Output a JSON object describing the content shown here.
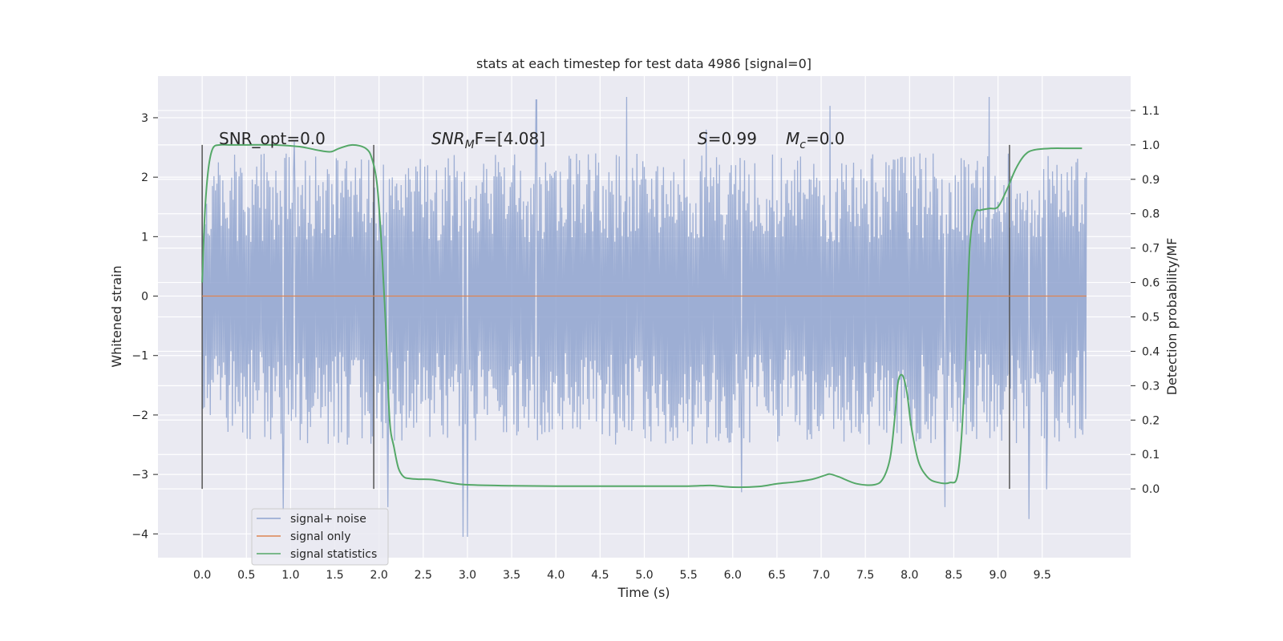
{
  "chart_data": {
    "type": "line",
    "title": "stats at each timestep for test data 4986 [signal=0]",
    "xlabel": "Time (s)",
    "ylabel": "Whitened strain",
    "ylabel_right": "Detection probability/MF",
    "xlim": [
      -0.5,
      10.5
    ],
    "ylim": [
      -4.4,
      3.7
    ],
    "ylim_right": [
      -0.2,
      1.2
    ],
    "xticks": [
      "0.0",
      "0.5",
      "1.0",
      "1.5",
      "2.0",
      "2.5",
      "3.0",
      "3.5",
      "4.0",
      "4.5",
      "5.0",
      "5.5",
      "6.0",
      "6.5",
      "7.0",
      "7.5",
      "8.0",
      "8.5",
      "9.0",
      "9.5"
    ],
    "yticks": [
      "3",
      "2",
      "1",
      "0",
      "−1",
      "−2",
      "−3",
      "−4"
    ],
    "yticks_right": [
      "1.1",
      "1.0",
      "0.9",
      "0.8",
      "0.7",
      "0.6",
      "0.5",
      "0.4",
      "0.3",
      "0.2",
      "0.1",
      "0.0"
    ],
    "grid": true,
    "legend_position": "lower-left",
    "annotations": {
      "snr_opt": "SNR_opt=0.0",
      "snr_mf_main": "SNR",
      "snr_mf_sub": "M",
      "snr_mf_rest": "F=[4.08]",
      "s_main": "S",
      "s_rest": "=0.99",
      "mc_main": "M",
      "mc_sub": "c",
      "mc_rest": "=0.0"
    },
    "vertical_markers_x": [
      0.0,
      1.94,
      9.13
    ],
    "series": [
      {
        "name": "signal+ noise",
        "axis": "left",
        "color": "#8fa3cf",
        "x_range": [
          0.0,
          10.0
        ],
        "envelope_high": 2.4,
        "envelope_low": -2.5,
        "peaks_high": [
          [
            1.04,
            2.6
          ],
          [
            2.1,
            3.25
          ],
          [
            3.78,
            3.3
          ],
          [
            4.8,
            3.35
          ],
          [
            7.1,
            3.2
          ],
          [
            8.9,
            3.35
          ],
          [
            5.7,
            2.8
          ]
        ],
        "peaks_low": [
          [
            0.92,
            -3.6
          ],
          [
            2.1,
            -3.55
          ],
          [
            2.95,
            -4.05
          ],
          [
            3.0,
            -4.05
          ],
          [
            6.1,
            -3.3
          ],
          [
            8.4,
            -3.55
          ],
          [
            9.35,
            -3.75
          ],
          [
            9.55,
            -3.25
          ]
        ]
      },
      {
        "name": "signal only",
        "axis": "left",
        "color": "#dd8452",
        "x": [
          0.0,
          10.0
        ],
        "y": [
          0.0,
          0.0
        ]
      },
      {
        "name": "signal statistics",
        "axis": "right",
        "color": "#55a868",
        "x": [
          0.0,
          0.03,
          0.07,
          0.12,
          0.2,
          0.3,
          0.5,
          0.8,
          1.1,
          1.3,
          1.45,
          1.55,
          1.7,
          1.85,
          1.92,
          1.98,
          2.03,
          2.08,
          2.12,
          2.17,
          2.22,
          2.28,
          2.35,
          2.45,
          2.6,
          2.8,
          3.0,
          3.5,
          4.0,
          4.5,
          5.0,
          5.5,
          5.75,
          6.0,
          6.3,
          6.5,
          6.7,
          6.9,
          7.05,
          7.1,
          7.2,
          7.4,
          7.6,
          7.7,
          7.78,
          7.83,
          7.87,
          7.92,
          7.97,
          8.02,
          8.1,
          8.2,
          8.3,
          8.45,
          8.55,
          8.62,
          8.68,
          8.74,
          8.8,
          8.9,
          9.0,
          9.1,
          9.2,
          9.3,
          9.4,
          9.6,
          9.8,
          9.95
        ],
        "y": [
          0.6,
          0.8,
          0.93,
          0.99,
          1.0,
          1.0,
          1.0,
          1.0,
          0.995,
          0.985,
          0.98,
          0.99,
          1.0,
          0.99,
          0.96,
          0.88,
          0.7,
          0.45,
          0.2,
          0.12,
          0.06,
          0.035,
          0.03,
          0.028,
          0.027,
          0.018,
          0.012,
          0.009,
          0.008,
          0.008,
          0.008,
          0.008,
          0.01,
          0.005,
          0.007,
          0.015,
          0.02,
          0.028,
          0.04,
          0.043,
          0.035,
          0.015,
          0.012,
          0.03,
          0.09,
          0.2,
          0.31,
          0.33,
          0.28,
          0.18,
          0.08,
          0.035,
          0.02,
          0.018,
          0.05,
          0.3,
          0.7,
          0.8,
          0.81,
          0.815,
          0.82,
          0.87,
          0.93,
          0.97,
          0.985,
          0.99,
          0.99,
          0.99
        ]
      }
    ],
    "colors": {
      "plot_bg": "#eaeaf2",
      "grid": "#ffffff",
      "marker": "#555555",
      "text": "#262626"
    }
  }
}
